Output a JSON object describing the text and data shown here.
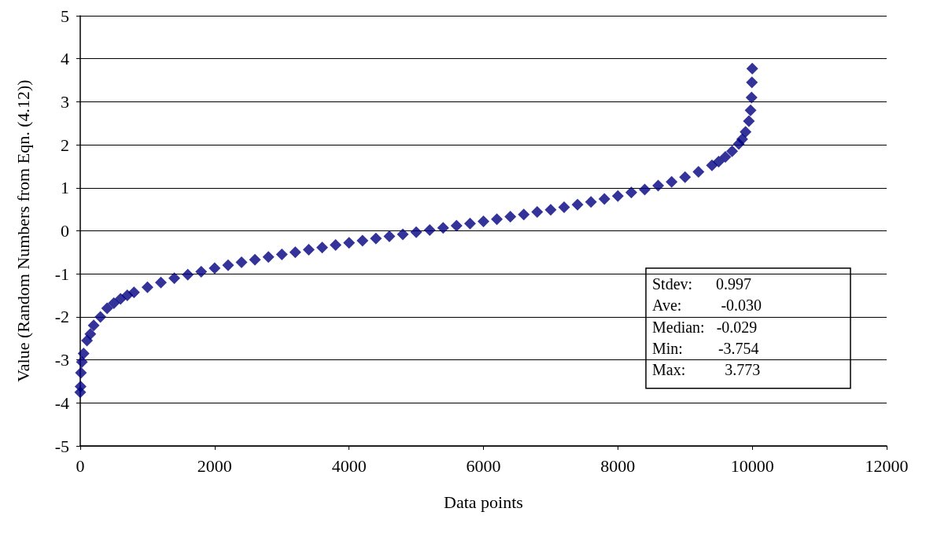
{
  "chart_data": {
    "type": "scatter",
    "xlabel": "Data points",
    "ylabel": "Value (Random Numbers from Eqn. (4.12))",
    "x": [
      0,
      5,
      10,
      25,
      50,
      100,
      150,
      200,
      300,
      400,
      500,
      600,
      700,
      800,
      1000,
      1200,
      1400,
      1600,
      1800,
      2000,
      2200,
      2400,
      2600,
      2800,
      3000,
      3200,
      3400,
      3600,
      3800,
      4000,
      4200,
      4400,
      4600,
      4800,
      5000,
      5200,
      5400,
      5600,
      5800,
      6000,
      6200,
      6400,
      6600,
      6800,
      7000,
      7200,
      7400,
      7600,
      7800,
      8000,
      8200,
      8400,
      8600,
      8800,
      9000,
      9200,
      9400,
      9500,
      9600,
      9700,
      9800,
      9850,
      9900,
      9950,
      9975,
      9990,
      9995,
      10000
    ],
    "series": [
      {
        "color": "#000080",
        "values": [
          -3.75,
          -3.62,
          -3.3,
          -3.05,
          -2.85,
          -2.55,
          -2.4,
          -2.2,
          -2.0,
          -1.8,
          -1.68,
          -1.58,
          -1.5,
          -1.43,
          -1.31,
          -1.2,
          -1.1,
          -1.02,
          -0.95,
          -0.87,
          -0.8,
          -0.73,
          -0.67,
          -0.61,
          -0.55,
          -0.5,
          -0.44,
          -0.39,
          -0.33,
          -0.28,
          -0.23,
          -0.18,
          -0.13,
          -0.08,
          -0.03,
          0.02,
          0.07,
          0.12,
          0.17,
          0.22,
          0.27,
          0.33,
          0.38,
          0.44,
          0.49,
          0.55,
          0.61,
          0.67,
          0.74,
          0.81,
          0.89,
          0.96,
          1.05,
          1.14,
          1.25,
          1.37,
          1.52,
          1.61,
          1.72,
          1.85,
          2.02,
          2.13,
          2.3,
          2.55,
          2.8,
          3.1,
          3.45,
          3.77
        ]
      }
    ],
    "xlim": [
      0,
      12000
    ],
    "xticks": [
      0,
      2000,
      4000,
      6000,
      8000,
      10000,
      12000
    ],
    "ylim": [
      -5,
      5
    ],
    "yticks": [
      -5,
      -4,
      -3,
      -2,
      -1,
      0,
      1,
      2,
      3,
      4,
      5
    ],
    "grid": "y",
    "marker": "diamond",
    "annotations": [
      "Stdev:      0.997",
      "Ave:          -0.030",
      "Median:   -0.029",
      "Min:         -3.754",
      "Max:          3.773"
    ]
  }
}
